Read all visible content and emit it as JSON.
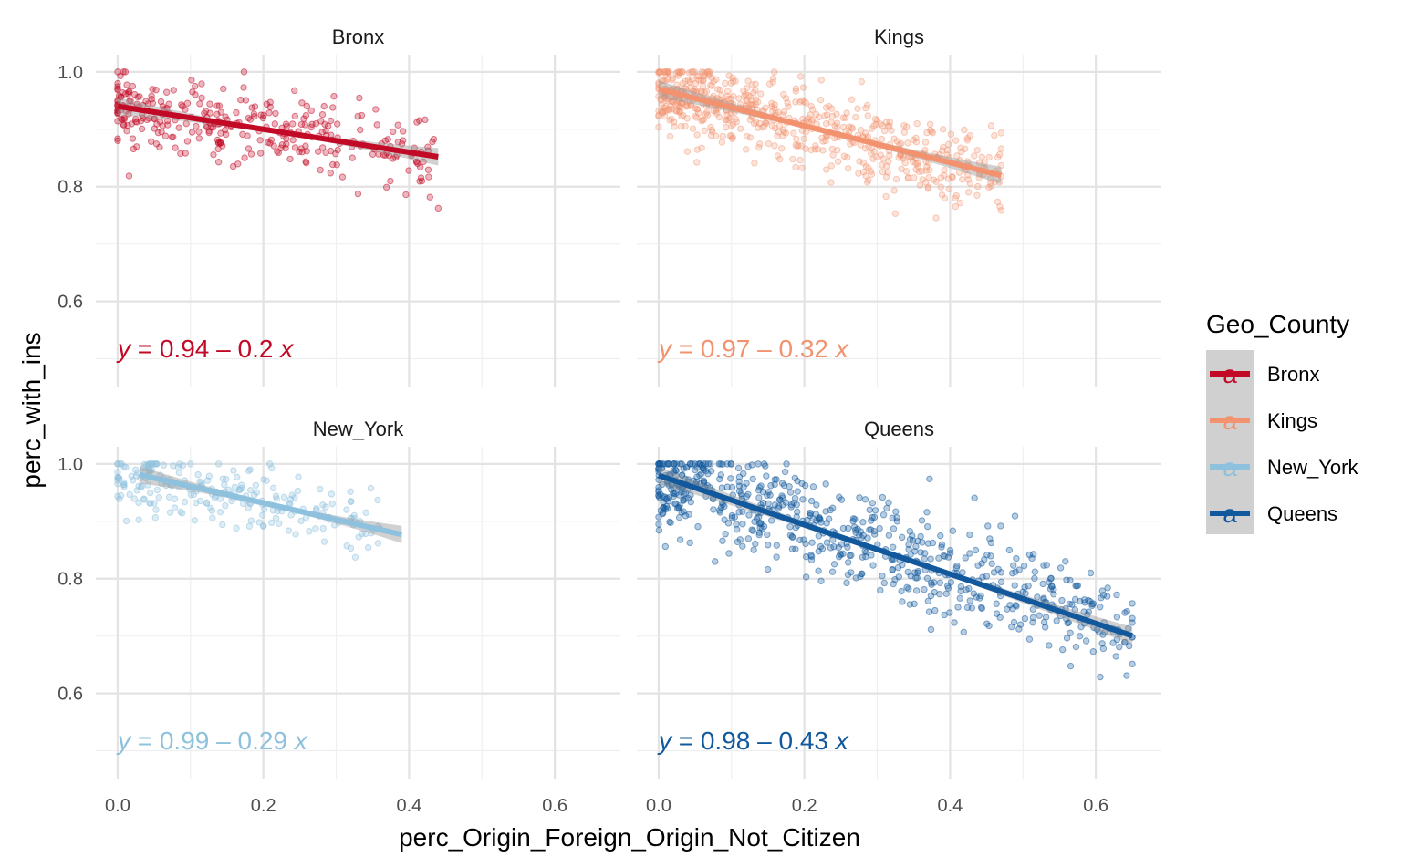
{
  "chart_data": {
    "type": "scatter",
    "title": "",
    "xlabel": "perc_Origin_Foreign_Origin_Not_Citizen",
    "ylabel": "perc_with_ins",
    "xlim": [
      -0.03,
      0.69
    ],
    "ylim": [
      0.45,
      1.03
    ],
    "x_ticks": [
      "0.0",
      "0.2",
      "0.4",
      "0.6"
    ],
    "y_ticks": [
      "0.6",
      "0.8",
      "1.0"
    ],
    "grid": true,
    "facet_by": "Geo_County",
    "legend": {
      "title": "Geo_County",
      "position": "right",
      "key_glyph": "a",
      "entries": [
        "Bronx",
        "Kings",
        "New_York",
        "Queens"
      ]
    },
    "series": [
      {
        "name": "Bronx",
        "color": "#c20a26",
        "point_alpha": 0.3,
        "equation": {
          "prefix": "y",
          "body": " = 0.94 – 0.2 ",
          "suffix": "x"
        },
        "fit": {
          "intercept": 0.94,
          "slope": -0.2,
          "x_range": [
            0.0,
            0.44
          ]
        },
        "spread": {
          "x_max": 0.44,
          "noise": 0.035
        }
      },
      {
        "name": "Kings",
        "color": "#f2926e",
        "point_alpha": 0.25,
        "equation": {
          "prefix": "y",
          "body": " = 0.97 – 0.32 ",
          "suffix": "x"
        },
        "fit": {
          "intercept": 0.97,
          "slope": -0.32,
          "x_range": [
            0.0,
            0.47
          ]
        },
        "spread": {
          "x_max": 0.47,
          "noise": 0.035
        }
      },
      {
        "name": "New_York",
        "color": "#8ec1dd",
        "point_alpha": 0.3,
        "equation": {
          "prefix": "y",
          "body": " = 0.99 – 0.29 ",
          "suffix": "x"
        },
        "fit": {
          "intercept": 0.99,
          "slope": -0.29,
          "x_range": [
            0.03,
            0.39
          ]
        },
        "spread": {
          "x_max": 0.36,
          "noise": 0.03
        }
      },
      {
        "name": "Queens",
        "color": "#11589d",
        "point_alpha": 0.3,
        "equation": {
          "prefix": "y",
          "body": " = 0.98 – 0.43 ",
          "suffix": "x"
        },
        "fit": {
          "intercept": 0.98,
          "slope": -0.43,
          "x_range": [
            0.0,
            0.65
          ]
        },
        "spread": {
          "x_max": 0.65,
          "noise": 0.045
        }
      }
    ]
  }
}
